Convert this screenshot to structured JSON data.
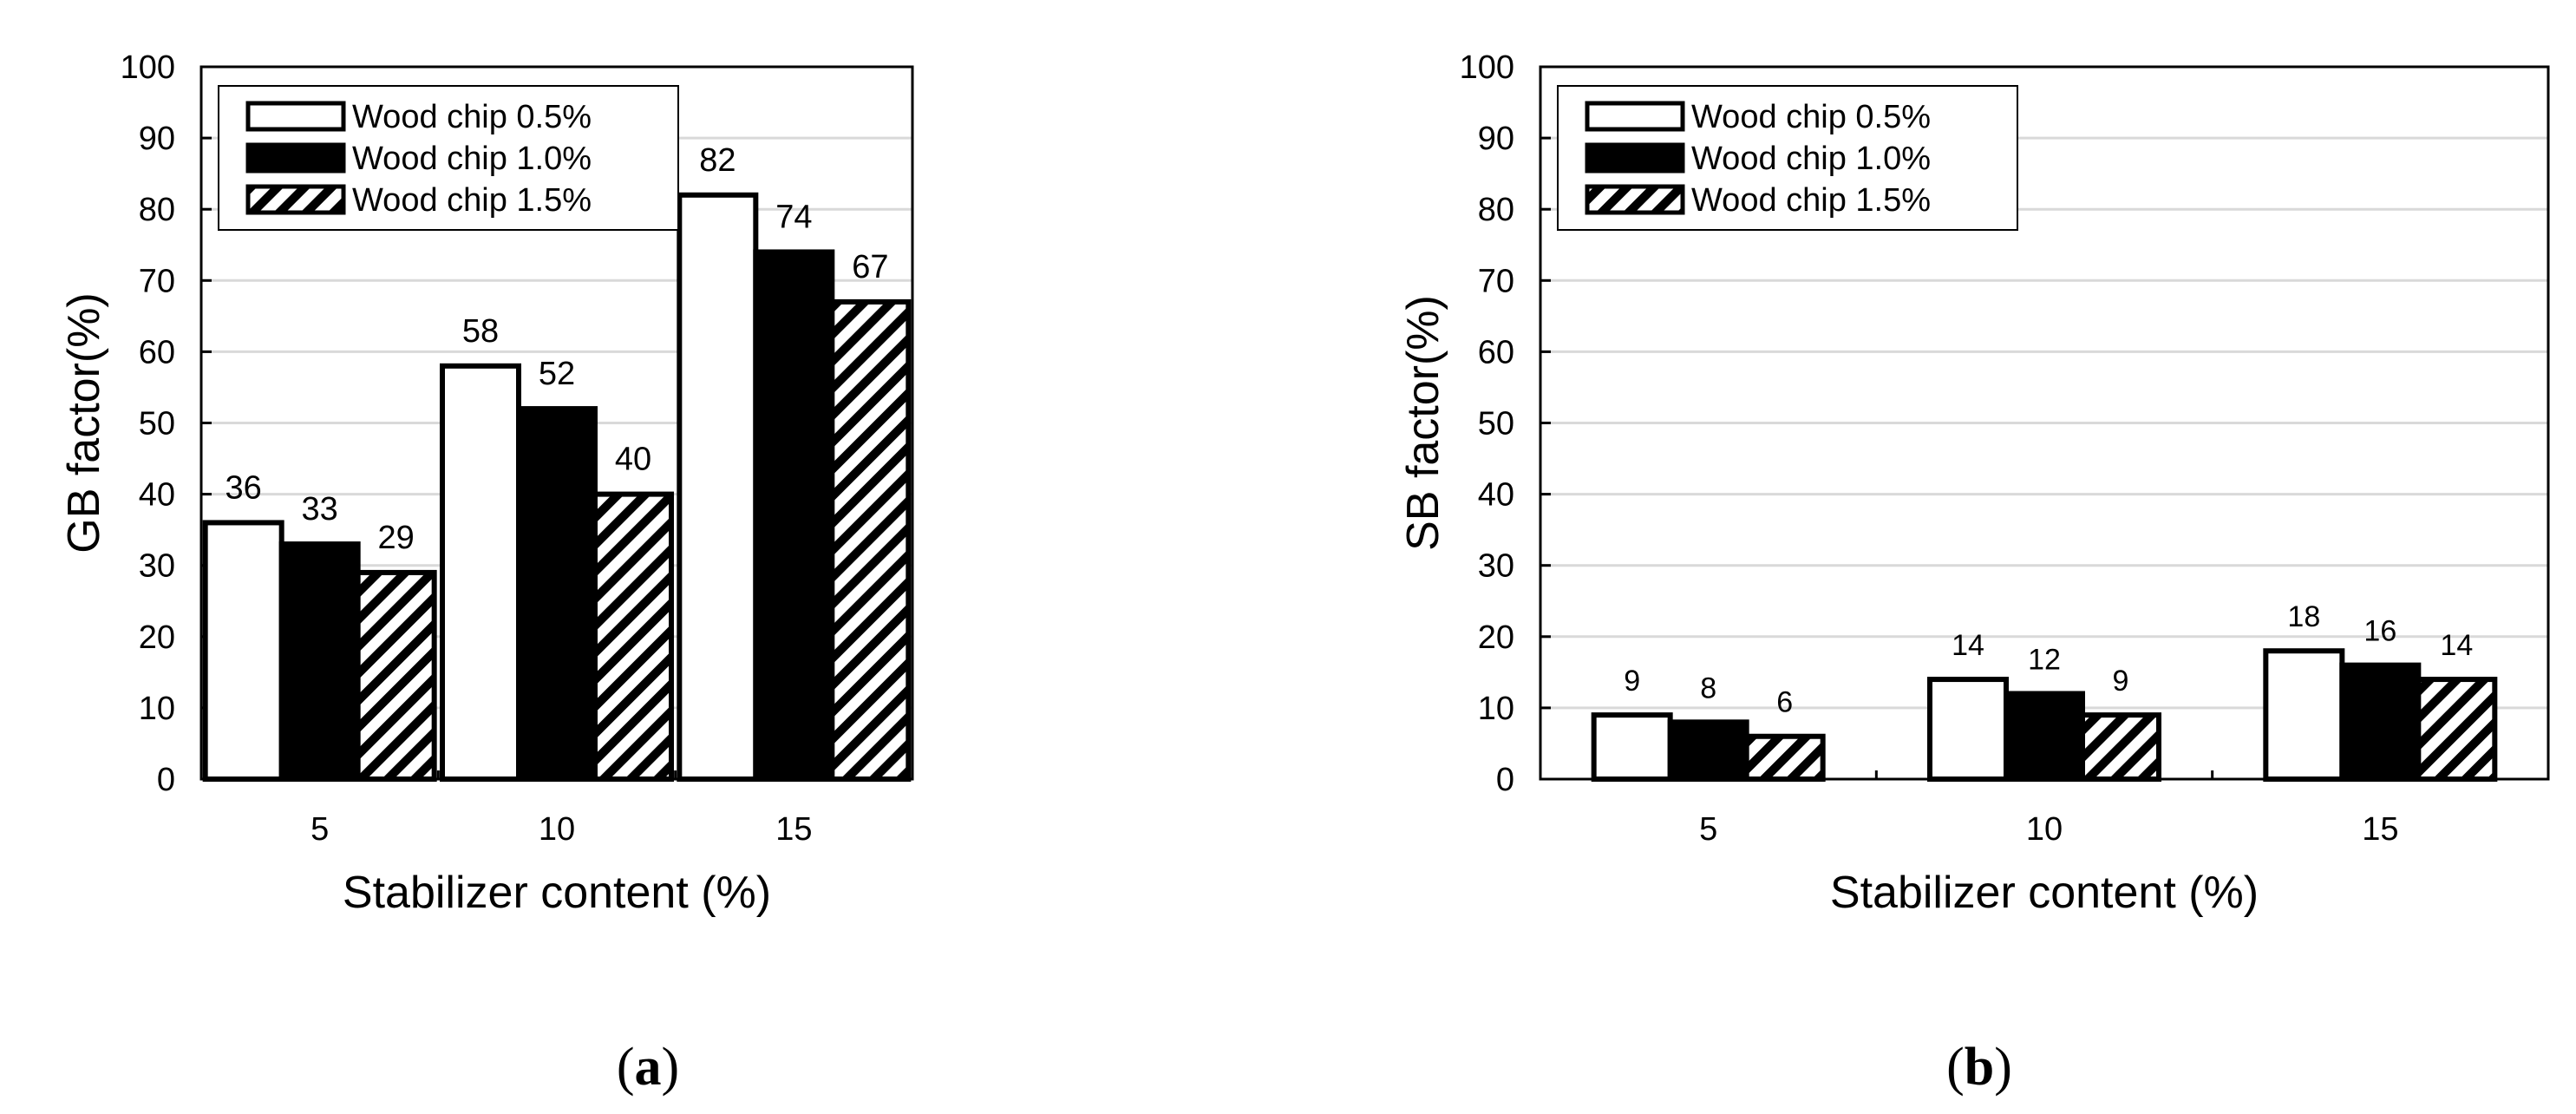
{
  "chart_data": [
    {
      "type": "bar",
      "panel": "a",
      "panel_label": "a",
      "categories": [
        "5",
        "10",
        "15"
      ],
      "xlabel": "Stabilizer content (%)",
      "ylabel": "GB factor(%)",
      "ylim": [
        0,
        100
      ],
      "yticks": [
        "0",
        "10",
        "20",
        "30",
        "40",
        "50",
        "60",
        "70",
        "80",
        "90",
        "100"
      ],
      "grid": true,
      "legend_position": "top-left",
      "series": [
        {
          "name": "Wood chip 0.5%",
          "values": [
            36,
            58,
            82
          ],
          "fill": "white"
        },
        {
          "name": "Wood chip 1.0%",
          "values": [
            33,
            52,
            74
          ],
          "fill": "black"
        },
        {
          "name": "Wood chip 1.5%",
          "values": [
            29,
            40,
            67
          ],
          "fill": "hatched"
        }
      ]
    },
    {
      "type": "bar",
      "panel": "b",
      "panel_label": "b",
      "categories": [
        "5",
        "10",
        "15"
      ],
      "xlabel": "Stabilizer content (%)",
      "ylabel": "SB factor(%)",
      "ylim": [
        0,
        100
      ],
      "yticks": [
        "0",
        "10",
        "20",
        "30",
        "40",
        "50",
        "60",
        "70",
        "80",
        "90",
        "100"
      ],
      "grid": true,
      "legend_position": "top-left",
      "series": [
        {
          "name": "Wood chip 0.5%",
          "values": [
            9,
            14,
            18
          ],
          "fill": "white"
        },
        {
          "name": "Wood chip 1.0%",
          "values": [
            8,
            12,
            16
          ],
          "fill": "black"
        },
        {
          "name": "Wood chip 1.5%",
          "values": [
            6,
            9,
            14
          ],
          "fill": "hatched"
        }
      ]
    }
  ],
  "colors": {
    "gridline": "#d9d9d9",
    "axis": "#000000",
    "bar_outline": "#000000",
    "bar_white": "#ffffff",
    "bar_black": "#000000",
    "hatch": "#000000"
  }
}
